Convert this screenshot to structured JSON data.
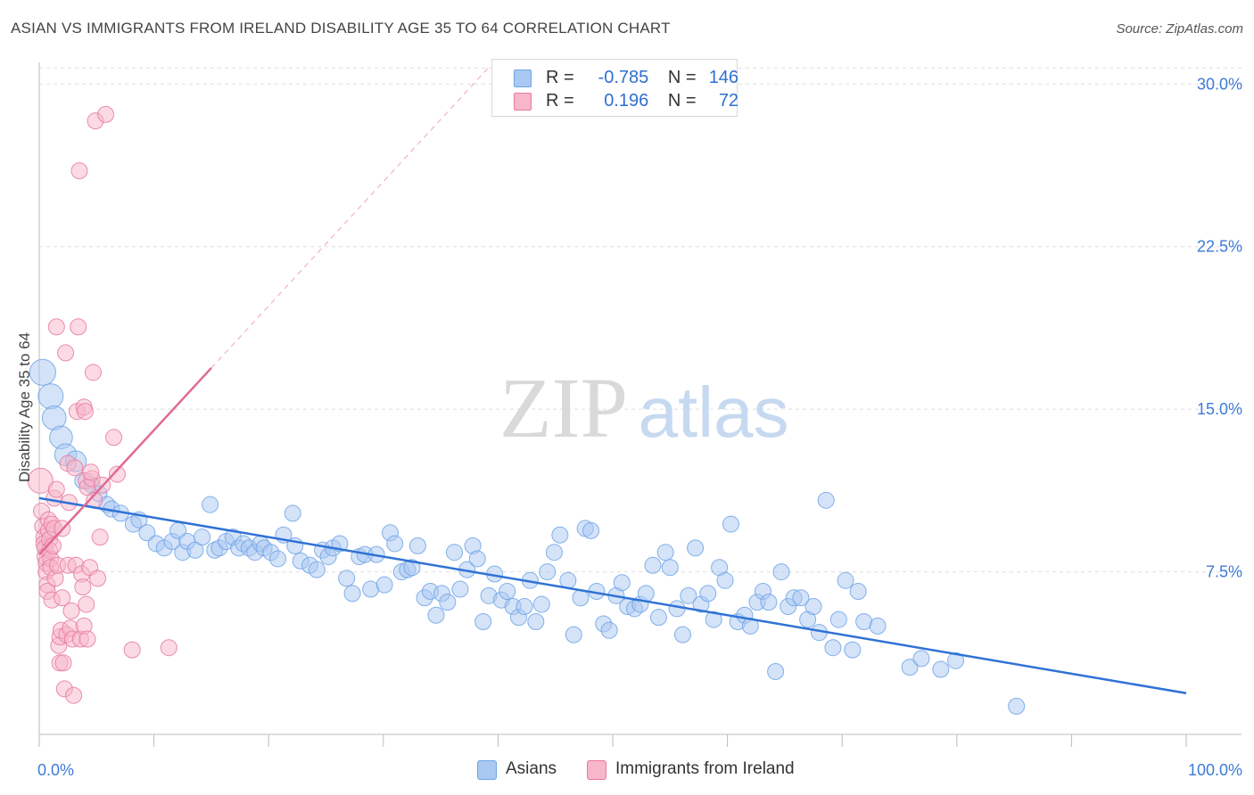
{
  "title": "ASIAN VS IMMIGRANTS FROM IRELAND DISABILITY AGE 35 TO 64 CORRELATION CHART",
  "source": "Source: ZipAtlas.com",
  "watermark": {
    "zip": "ZIP",
    "atlas": "atlas"
  },
  "legend": {
    "rows": [
      {
        "r_label": "R =",
        "r_value": "-0.785",
        "n_label": "N =",
        "n_value": "146",
        "color": "#a9c8f2"
      },
      {
        "r_label": "R =",
        "r_value": "0.196",
        "n_label": "N =",
        "n_value": "72",
        "color": "#f7b6c9"
      }
    ],
    "bottom": [
      "Asians",
      "Immigrants from Ireland"
    ]
  },
  "chart_data": {
    "type": "scatter",
    "title": "ASIAN VS IMMIGRANTS FROM IRELAND DISABILITY AGE 35 TO 64 CORRELATION CHART",
    "xlabel": "",
    "ylabel": "Disability Age 35 to 64",
    "xlim": [
      0,
      100
    ],
    "ylim": [
      0,
      31
    ],
    "x_tick_labels": [
      "0.0%",
      "100.0%"
    ],
    "y_ticks": [
      7.5,
      15.0,
      22.5,
      30.0
    ],
    "y_tick_labels": [
      "7.5%",
      "15.0%",
      "22.5%",
      "30.0%"
    ],
    "grid": true,
    "series": [
      {
        "name": "Asians",
        "color": "#6fa3e6",
        "fill": "#a9c8f2",
        "trend": {
          "x": [
            0,
            100
          ],
          "y": [
            10.9,
            1.9
          ]
        },
        "points": [
          [
            0.3,
            16.7
          ],
          [
            1.0,
            15.6
          ],
          [
            1.3,
            14.6
          ],
          [
            1.9,
            13.7
          ],
          [
            2.3,
            12.9
          ],
          [
            3.2,
            12.6
          ],
          [
            3.8,
            11.7
          ],
          [
            4.6,
            11.5
          ],
          [
            5.2,
            11.1
          ],
          [
            5.9,
            10.6
          ],
          [
            6.3,
            10.4
          ],
          [
            7.1,
            10.2
          ],
          [
            8.2,
            9.7
          ],
          [
            8.7,
            9.9
          ],
          [
            9.4,
            9.3
          ],
          [
            10.2,
            8.8
          ],
          [
            10.9,
            8.6
          ],
          [
            11.6,
            8.9
          ],
          [
            12.1,
            9.4
          ],
          [
            12.5,
            8.4
          ],
          [
            12.9,
            8.9
          ],
          [
            13.6,
            8.5
          ],
          [
            14.2,
            9.1
          ],
          [
            14.9,
            10.6
          ],
          [
            15.3,
            8.5
          ],
          [
            15.7,
            8.6
          ],
          [
            16.3,
            8.9
          ],
          [
            16.9,
            9.1
          ],
          [
            17.4,
            8.6
          ],
          [
            17.8,
            8.8
          ],
          [
            18.3,
            8.6
          ],
          [
            18.8,
            8.4
          ],
          [
            19.3,
            8.8
          ],
          [
            19.6,
            8.6
          ],
          [
            20.2,
            8.4
          ],
          [
            20.8,
            8.1
          ],
          [
            21.3,
            9.2
          ],
          [
            22.3,
            8.7
          ],
          [
            22.8,
            8.0
          ],
          [
            22.1,
            10.2
          ],
          [
            23.6,
            7.8
          ],
          [
            24.2,
            7.6
          ],
          [
            24.7,
            8.5
          ],
          [
            25.2,
            8.2
          ],
          [
            25.6,
            8.6
          ],
          [
            26.2,
            8.8
          ],
          [
            26.8,
            7.2
          ],
          [
            27.3,
            6.5
          ],
          [
            27.9,
            8.2
          ],
          [
            28.4,
            8.3
          ],
          [
            28.9,
            6.7
          ],
          [
            29.4,
            8.3
          ],
          [
            30.1,
            6.9
          ],
          [
            30.6,
            9.3
          ],
          [
            31.0,
            8.8
          ],
          [
            31.6,
            7.5
          ],
          [
            32.1,
            7.6
          ],
          [
            32.5,
            7.7
          ],
          [
            33.0,
            8.7
          ],
          [
            33.6,
            6.3
          ],
          [
            34.1,
            6.6
          ],
          [
            34.6,
            5.5
          ],
          [
            35.1,
            6.5
          ],
          [
            35.6,
            6.1
          ],
          [
            36.2,
            8.4
          ],
          [
            36.7,
            6.7
          ],
          [
            37.3,
            7.6
          ],
          [
            37.8,
            8.7
          ],
          [
            38.2,
            8.1
          ],
          [
            38.7,
            5.2
          ],
          [
            39.2,
            6.4
          ],
          [
            39.7,
            7.4
          ],
          [
            40.3,
            6.2
          ],
          [
            40.8,
            6.6
          ],
          [
            41.3,
            5.9
          ],
          [
            41.8,
            5.4
          ],
          [
            42.3,
            5.9
          ],
          [
            42.8,
            7.1
          ],
          [
            43.3,
            5.2
          ],
          [
            43.8,
            6.0
          ],
          [
            44.3,
            7.5
          ],
          [
            44.9,
            8.4
          ],
          [
            45.4,
            9.2
          ],
          [
            46.1,
            7.1
          ],
          [
            46.6,
            4.6
          ],
          [
            47.2,
            6.3
          ],
          [
            47.6,
            9.5
          ],
          [
            48.1,
            9.4
          ],
          [
            48.6,
            6.6
          ],
          [
            49.2,
            5.1
          ],
          [
            49.7,
            4.8
          ],
          [
            50.3,
            6.4
          ],
          [
            50.8,
            7.0
          ],
          [
            51.3,
            5.9
          ],
          [
            51.9,
            5.8
          ],
          [
            52.4,
            6.0
          ],
          [
            52.9,
            6.5
          ],
          [
            53.5,
            7.8
          ],
          [
            54.0,
            5.4
          ],
          [
            54.6,
            8.4
          ],
          [
            55.0,
            7.7
          ],
          [
            55.6,
            5.8
          ],
          [
            56.1,
            4.6
          ],
          [
            56.6,
            6.4
          ],
          [
            57.2,
            8.6
          ],
          [
            57.7,
            6.0
          ],
          [
            58.3,
            6.5
          ],
          [
            58.8,
            5.3
          ],
          [
            59.3,
            7.7
          ],
          [
            59.8,
            7.1
          ],
          [
            60.3,
            9.7
          ],
          [
            60.9,
            5.2
          ],
          [
            61.5,
            5.5
          ],
          [
            62.0,
            5.0
          ],
          [
            62.6,
            6.1
          ],
          [
            63.1,
            6.6
          ],
          [
            63.6,
            6.1
          ],
          [
            64.2,
            2.9
          ],
          [
            64.7,
            7.5
          ],
          [
            65.3,
            5.9
          ],
          [
            65.8,
            6.3
          ],
          [
            66.4,
            6.3
          ],
          [
            67.0,
            5.3
          ],
          [
            67.5,
            5.9
          ],
          [
            68.0,
            4.7
          ],
          [
            68.6,
            10.8
          ],
          [
            69.2,
            4.0
          ],
          [
            69.7,
            5.3
          ],
          [
            70.3,
            7.1
          ],
          [
            70.9,
            3.9
          ],
          [
            71.4,
            6.6
          ],
          [
            71.9,
            5.2
          ],
          [
            73.1,
            5.0
          ],
          [
            75.9,
            3.1
          ],
          [
            76.9,
            3.5
          ],
          [
            78.6,
            3.0
          ],
          [
            79.9,
            3.4
          ],
          [
            85.2,
            1.3
          ]
        ]
      },
      {
        "name": "Immigrants from Ireland",
        "color": "#e8799d",
        "fill": "#f7b6c9",
        "trend": {
          "x": [
            0,
            15.0
          ],
          "y": [
            8.3,
            16.9
          ]
        },
        "points": [
          [
            0.1,
            11.7
          ],
          [
            0.2,
            10.3
          ],
          [
            0.3,
            9.6
          ],
          [
            0.4,
            9.1
          ],
          [
            0.4,
            8.8
          ],
          [
            0.5,
            8.6
          ],
          [
            0.5,
            8.2
          ],
          [
            0.6,
            7.9
          ],
          [
            0.6,
            7.5
          ],
          [
            0.7,
            6.9
          ],
          [
            0.7,
            6.6
          ],
          [
            0.8,
            9.9
          ],
          [
            0.8,
            9.4
          ],
          [
            0.9,
            9.0
          ],
          [
            0.9,
            8.5
          ],
          [
            1.0,
            8.1
          ],
          [
            1.0,
            7.7
          ],
          [
            1.1,
            6.2
          ],
          [
            1.1,
            9.7
          ],
          [
            1.2,
            8.7
          ],
          [
            1.3,
            9.5
          ],
          [
            1.3,
            10.9
          ],
          [
            1.4,
            7.2
          ],
          [
            1.5,
            18.8
          ],
          [
            1.5,
            11.3
          ],
          [
            1.6,
            7.8
          ],
          [
            1.7,
            4.1
          ],
          [
            1.8,
            4.5
          ],
          [
            1.8,
            3.3
          ],
          [
            1.9,
            4.8
          ],
          [
            2.0,
            6.3
          ],
          [
            2.0,
            9.5
          ],
          [
            2.1,
            3.3
          ],
          [
            2.2,
            2.1
          ],
          [
            2.3,
            17.6
          ],
          [
            2.4,
            4.6
          ],
          [
            2.5,
            12.5
          ],
          [
            2.5,
            7.8
          ],
          [
            2.6,
            10.7
          ],
          [
            2.7,
            4.9
          ],
          [
            2.8,
            5.7
          ],
          [
            2.9,
            4.4
          ],
          [
            3.0,
            1.8
          ],
          [
            3.1,
            12.3
          ],
          [
            3.2,
            7.8
          ],
          [
            3.3,
            14.9
          ],
          [
            3.4,
            18.8
          ],
          [
            3.5,
            26.0
          ],
          [
            3.6,
            4.4
          ],
          [
            3.7,
            7.4
          ],
          [
            3.8,
            6.8
          ],
          [
            3.9,
            5.0
          ],
          [
            3.9,
            15.1
          ],
          [
            4.0,
            14.9
          ],
          [
            4.1,
            11.7
          ],
          [
            4.1,
            6.0
          ],
          [
            4.2,
            4.4
          ],
          [
            4.2,
            11.4
          ],
          [
            4.4,
            7.7
          ],
          [
            4.6,
            11.8
          ],
          [
            4.5,
            12.1
          ],
          [
            4.8,
            10.8
          ],
          [
            4.9,
            28.3
          ],
          [
            4.7,
            16.7
          ],
          [
            5.1,
            7.2
          ],
          [
            5.3,
            9.1
          ],
          [
            5.5,
            11.5
          ],
          [
            5.8,
            28.6
          ],
          [
            6.5,
            13.7
          ],
          [
            8.1,
            3.9
          ],
          [
            11.3,
            4.0
          ],
          [
            6.8,
            12.0
          ]
        ]
      }
    ]
  }
}
